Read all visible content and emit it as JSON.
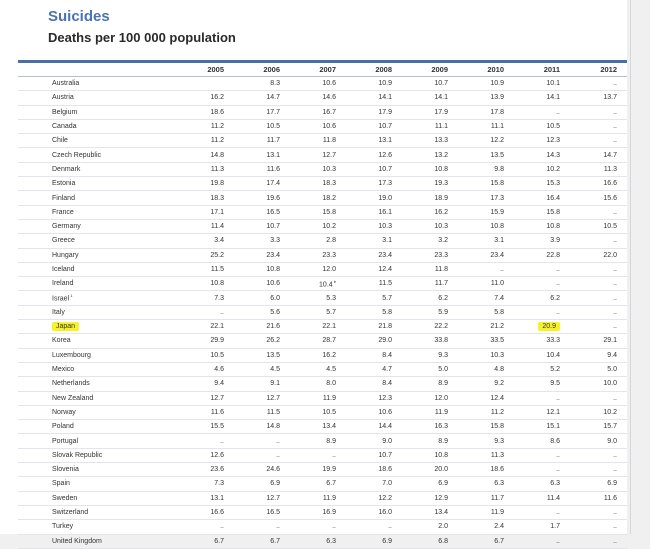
{
  "title": "Suicides",
  "subtitle": "Deaths per 100 000 population",
  "columns": [
    "2005",
    "2006",
    "2007",
    "2008",
    "2009",
    "2010",
    "2011",
    "2012"
  ],
  "rows": [
    {
      "country": "Australia",
      "values": [
        "",
        "8.3",
        "10.6",
        "10.9",
        "10.7",
        "10.9",
        "10.1",
        ".."
      ]
    },
    {
      "country": "Austria",
      "values": [
        "16.2",
        "14.7",
        "14.6",
        "14.1",
        "14.1",
        "13.9",
        "14.1",
        "13.7"
      ]
    },
    {
      "country": "Belgium",
      "values": [
        "18.6",
        "17.7",
        "16.7",
        "17.9",
        "17.9",
        "17.8",
        "..",
        ".."
      ]
    },
    {
      "country": "Canada",
      "values": [
        "11.2",
        "10.5",
        "10.6",
        "10.7",
        "11.1",
        "11.1",
        "10.5",
        ".."
      ]
    },
    {
      "country": "Chile",
      "values": [
        "11.2",
        "11.7",
        "11.8",
        "13.1",
        "13.3",
        "12.2",
        "12.3",
        ".."
      ]
    },
    {
      "country": "Czech Republic",
      "values": [
        "14.8",
        "13.1",
        "12.7",
        "12.6",
        "13.2",
        "13.5",
        "14.3",
        "14.7"
      ]
    },
    {
      "country": "Denmark",
      "values": [
        "11.3",
        "11.6",
        "10.3",
        "10.7",
        "10.8",
        "9.8",
        "10.2",
        "11.3"
      ]
    },
    {
      "country": "Estonia",
      "values": [
        "19.8",
        "17.4",
        "18.3",
        "17.3",
        "19.3",
        "15.8",
        "15.3",
        "16.6"
      ]
    },
    {
      "country": "Finland",
      "values": [
        "18.3",
        "19.6",
        "18.2",
        "19.0",
        "18.9",
        "17.3",
        "16.4",
        "15.6"
      ]
    },
    {
      "country": "France",
      "values": [
        "17.1",
        "16.5",
        "15.8",
        "16.1",
        "16.2",
        "15.9",
        "15.8",
        ".."
      ]
    },
    {
      "country": "Germany",
      "values": [
        "11.4",
        "10.7",
        "10.2",
        "10.3",
        "10.3",
        "10.8",
        "10.8",
        "10.5"
      ]
    },
    {
      "country": "Greece",
      "values": [
        "3.4",
        "3.3",
        "2.8",
        "3.1",
        "3.2",
        "3.1",
        "3.9",
        ".."
      ]
    },
    {
      "country": "Hungary",
      "values": [
        "25.2",
        "23.4",
        "23.3",
        "23.4",
        "23.3",
        "23.4",
        "22.8",
        "22.0"
      ]
    },
    {
      "country": "Iceland",
      "values": [
        "11.5",
        "10.8",
        "12.0",
        "12.4",
        "11.8",
        "..",
        "..",
        ".."
      ]
    },
    {
      "country": "Ireland",
      "values": [
        "10.8",
        "10.6",
        "10.4",
        "11.5",
        "11.7",
        "11.0",
        "..",
        ".."
      ],
      "marks": {
        "2": "b"
      }
    },
    {
      "country": "Israel",
      "country_mark": "1",
      "values": [
        "7.3",
        "6.0",
        "5.3",
        "5.7",
        "6.2",
        "7.4",
        "6.2",
        ".."
      ]
    },
    {
      "country": "Italy",
      "values": [
        "..",
        "5.6",
        "5.7",
        "5.8",
        "5.9",
        "5.8",
        "..",
        ".."
      ]
    },
    {
      "country": "Japan",
      "highlight": true,
      "highlight_col": 6,
      "values": [
        "22.1",
        "21.6",
        "22.1",
        "21.8",
        "22.2",
        "21.2",
        "20.9",
        ".."
      ]
    },
    {
      "country": "Korea",
      "values": [
        "29.9",
        "26.2",
        "28.7",
        "29.0",
        "33.8",
        "33.5",
        "33.3",
        "29.1"
      ]
    },
    {
      "country": "Luxembourg",
      "values": [
        "10.5",
        "13.5",
        "16.2",
        "8.4",
        "9.3",
        "10.3",
        "10.4",
        "9.4"
      ]
    },
    {
      "country": "Mexico",
      "values": [
        "4.6",
        "4.5",
        "4.5",
        "4.7",
        "5.0",
        "4.8",
        "5.2",
        "5.0"
      ]
    },
    {
      "country": "Netherlands",
      "values": [
        "9.4",
        "9.1",
        "8.0",
        "8.4",
        "8.9",
        "9.2",
        "9.5",
        "10.0"
      ]
    },
    {
      "country": "New Zealand",
      "values": [
        "12.7",
        "12.7",
        "11.9",
        "12.3",
        "12.0",
        "12.4",
        "..",
        ".."
      ]
    },
    {
      "country": "Norway",
      "values": [
        "11.6",
        "11.5",
        "10.5",
        "10.6",
        "11.9",
        "11.2",
        "12.1",
        "10.2"
      ]
    },
    {
      "country": "Poland",
      "values": [
        "15.5",
        "14.8",
        "13.4",
        "14.4",
        "16.3",
        "15.8",
        "15.1",
        "15.7"
      ]
    },
    {
      "country": "Portugal",
      "values": [
        "..",
        "..",
        "8.9",
        "9.0",
        "8.9",
        "9.3",
        "8.6",
        "9.0"
      ]
    },
    {
      "country": "Slovak Republic",
      "values": [
        "12.6",
        "..",
        "..",
        "10.7",
        "10.8",
        "11.3",
        "..",
        ".."
      ]
    },
    {
      "country": "Slovenia",
      "values": [
        "23.6",
        "24.6",
        "19.9",
        "18.6",
        "20.0",
        "18.6",
        "..",
        ".."
      ]
    },
    {
      "country": "Spain",
      "values": [
        "7.3",
        "6.9",
        "6.7",
        "7.0",
        "6.9",
        "6.3",
        "6.3",
        "6.9"
      ]
    },
    {
      "country": "Sweden",
      "values": [
        "13.1",
        "12.7",
        "11.9",
        "12.2",
        "12.9",
        "11.7",
        "11.4",
        "11.6"
      ]
    },
    {
      "country": "Switzerland",
      "values": [
        "16.6",
        "16.5",
        "16.9",
        "16.0",
        "13.4",
        "11.9",
        "..",
        ".."
      ]
    },
    {
      "country": "Turkey",
      "values": [
        "..",
        "..",
        "..",
        "..",
        "2.0",
        "2.4",
        "1.7",
        ".."
      ]
    },
    {
      "country": "United Kingdom",
      "values": [
        "6.7",
        "6.7",
        "6.3",
        "6.9",
        "6.8",
        "6.7",
        "..",
        ".."
      ]
    }
  ]
}
